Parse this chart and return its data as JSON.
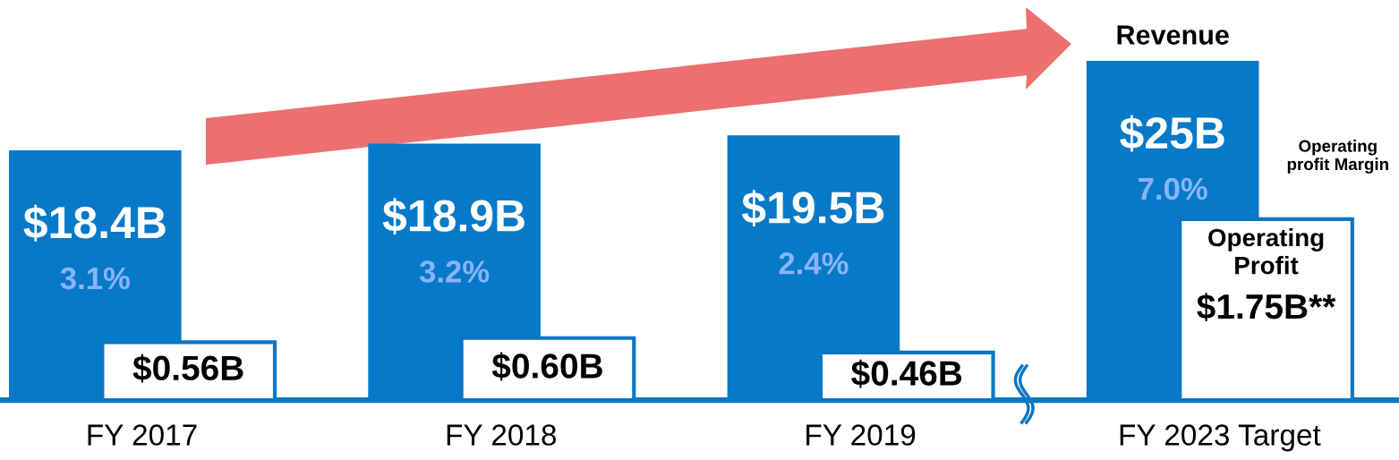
{
  "chart_data": {
    "type": "bar",
    "categories": [
      "FY 2017",
      "FY 2018",
      "FY 2019",
      "FY 2023 Target"
    ],
    "series": [
      {
        "name": "Revenue",
        "color": "#0779c9",
        "values": [
          18.4,
          18.9,
          19.5,
          25
        ],
        "value_labels": [
          "$18.4B",
          "$18.9B",
          "$19.5B",
          "$25B"
        ]
      },
      {
        "name": "Operating Profit",
        "color": "#ffffff",
        "axis": "y2",
        "values": [
          0.56,
          0.6,
          0.46,
          1.75
        ],
        "value_labels": [
          "$0.56B",
          "$0.60B",
          "$0.46B",
          "$1.75B**"
        ]
      }
    ],
    "tick_labels": "x",
    "annotations": [
      "3.1%",
      "3.2%",
      "2.4%",
      "7.0%",
      "Operating profit Margin"
    ]
  }
}
